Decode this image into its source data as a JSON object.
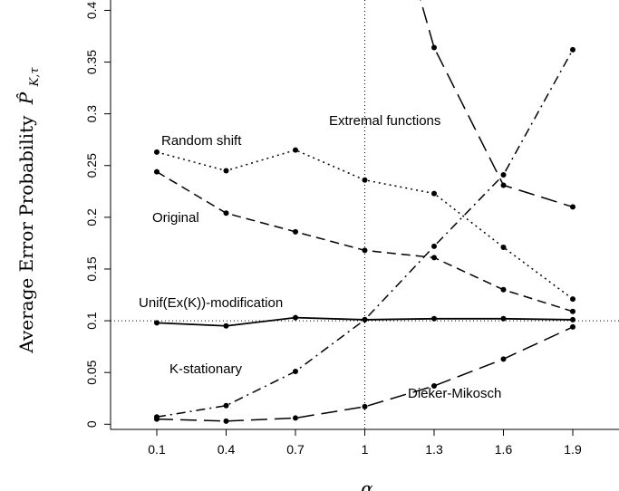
{
  "chart_data": {
    "type": "line",
    "xlabel": "α",
    "ylabel": "Average Error Probability",
    "ylabel_symbol": "P̂",
    "ylabel_subscript": "K,τ",
    "x": [
      0.1,
      0.4,
      0.7,
      1,
      1.3,
      1.6,
      1.9
    ],
    "x_tick_labels": [
      "0.1",
      "0.4",
      "0.7",
      "1",
      "1.3",
      "1.6",
      "1.9"
    ],
    "y_ticks": [
      0,
      0.05,
      0.1,
      0.15,
      0.2,
      0.25,
      0.3,
      0.35,
      0.4
    ],
    "y_tick_labels": [
      "0",
      "0.05",
      "0.1",
      "0.15",
      "0.2",
      "0.25",
      "0.3",
      "0.35",
      "0.4"
    ],
    "xlim": [
      -0.1,
      2.1
    ],
    "ylim": [
      -0.005,
      0.41
    ],
    "grid": false,
    "reference_lines": {
      "horizontal": 0.1,
      "vertical": 1
    },
    "series": [
      {
        "name": "Random shift",
        "style": "dotted",
        "values": [
          0.263,
          0.245,
          0.265,
          0.236,
          0.223,
          0.171,
          0.121
        ]
      },
      {
        "name": "Original",
        "style": "dashed",
        "values": [
          0.244,
          0.204,
          0.186,
          0.168,
          0.161,
          0.13,
          0.109
        ]
      },
      {
        "name": "Unif(Ex(K))-modification",
        "style": "solid",
        "values": [
          0.098,
          0.095,
          0.103,
          0.101,
          0.102,
          0.102,
          0.101
        ]
      },
      {
        "name": "Extremal functions",
        "style": "longdash",
        "values": [
          null,
          null,
          null,
          0.6,
          0.364,
          0.231,
          0.21
        ]
      },
      {
        "name": "K-stationary",
        "style": "dotdash",
        "values": [
          0.007,
          0.018,
          0.051,
          0.101,
          0.172,
          0.241,
          0.362
        ]
      },
      {
        "name": "Dieker-Mikosch",
        "style": "longdash",
        "values": [
          0.005,
          0.003,
          0.006,
          0.017,
          0.037,
          0.063,
          0.094
        ]
      }
    ]
  }
}
